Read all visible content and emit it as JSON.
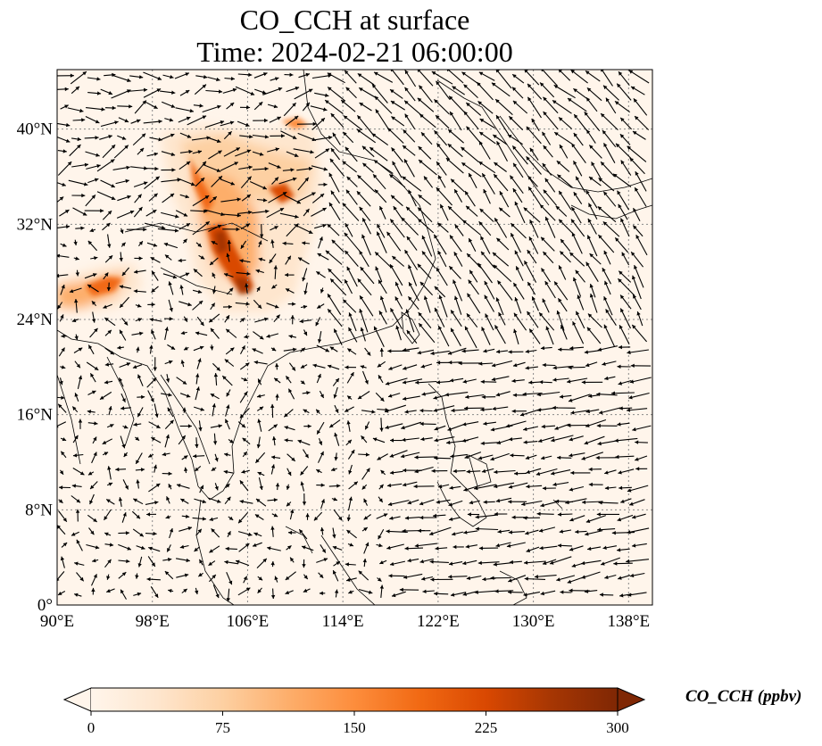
{
  "title": {
    "line1": "CO_CCH at surface",
    "line2": "Time: 2024-02-21 06:00:00"
  },
  "map": {
    "lon_range": [
      90,
      140
    ],
    "lat_range": [
      0,
      45
    ],
    "lon_ticks": [
      "90°E",
      "98°E",
      "106°E",
      "114°E",
      "122°E",
      "130°E",
      "138°E"
    ],
    "lon_tick_values": [
      90,
      98,
      106,
      114,
      122,
      130,
      138
    ],
    "lat_ticks": [
      "0°",
      "8°N",
      "16°N",
      "24°N",
      "32°N",
      "40°N"
    ],
    "lat_tick_values": [
      0,
      8,
      16,
      24,
      32,
      40
    ],
    "gridlines": "dotted",
    "background_color": "#fff5eb",
    "coastline_color": "#000000",
    "wind_vectors_shown": true
  },
  "colorbar": {
    "label": "CO_CCH (ppbv)",
    "min": 0,
    "max": 300,
    "ticks": [
      "0",
      "75",
      "150",
      "225",
      "300"
    ],
    "tick_values": [
      0,
      75,
      150,
      225,
      300
    ],
    "extend": "both",
    "colormap": [
      "#fff5eb",
      "#fee6ce",
      "#fdd0a2",
      "#fdae6b",
      "#fd8d3c",
      "#f16913",
      "#d94801",
      "#a63603",
      "#7f2704"
    ]
  }
}
